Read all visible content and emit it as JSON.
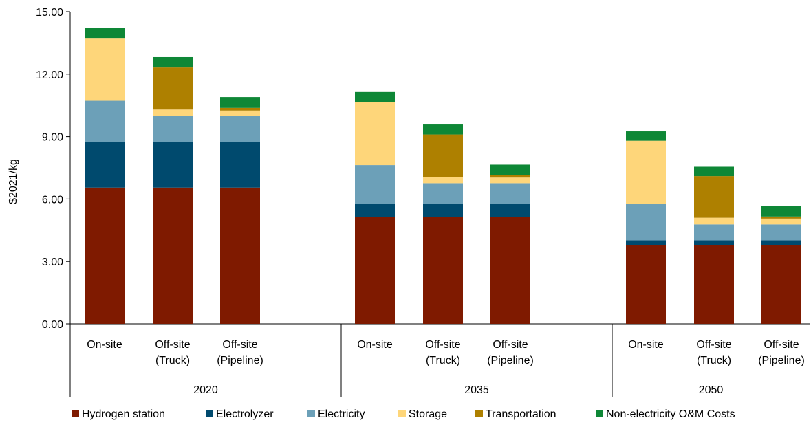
{
  "chart_data": {
    "type": "bar",
    "stacked": true,
    "title": "",
    "ylabel": "$2021/kg",
    "xlabel": "",
    "ylim": [
      0,
      15
    ],
    "yticks": [
      "0.00",
      "3.00",
      "6.00",
      "9.00",
      "12.00",
      "15.00"
    ],
    "grid": false,
    "legend_position": "bottom",
    "groups": [
      {
        "label": "2020",
        "categories": [
          {
            "lines": [
              "On-site"
            ]
          },
          {
            "lines": [
              "Off-site",
              "(Truck)"
            ]
          },
          {
            "lines": [
              "Off-site",
              "(Pipeline)"
            ]
          }
        ]
      },
      {
        "label": "2035",
        "categories": [
          {
            "lines": [
              "On-site"
            ]
          },
          {
            "lines": [
              "Off-site",
              "(Truck)"
            ]
          },
          {
            "lines": [
              "Off-site",
              "(Pipeline)"
            ]
          }
        ]
      },
      {
        "label": "2050",
        "categories": [
          {
            "lines": [
              "On-site"
            ]
          },
          {
            "lines": [
              "Off-site",
              "(Truck)"
            ]
          },
          {
            "lines": [
              "Off-site",
              "(Pipeline)"
            ]
          }
        ]
      }
    ],
    "series": [
      {
        "name": "Hydrogen station",
        "color": "#7f1a00",
        "values": [
          6.55,
          6.55,
          6.55,
          5.15,
          5.15,
          5.15,
          3.78,
          3.78,
          3.78
        ]
      },
      {
        "name": "Electrolyzer",
        "color": "#004a6e",
        "values": [
          2.2,
          2.2,
          2.2,
          0.63,
          0.63,
          0.63,
          0.24,
          0.24,
          0.24
        ]
      },
      {
        "name": "Electricity",
        "color": "#6ca0b8",
        "values": [
          1.97,
          1.25,
          1.25,
          1.85,
          0.98,
          0.98,
          1.75,
          0.76,
          0.76
        ]
      },
      {
        "name": "Storage",
        "color": "#fed67a",
        "values": [
          3.02,
          0.3,
          0.25,
          3.03,
          0.3,
          0.27,
          3.03,
          0.32,
          0.28
        ]
      },
      {
        "name": "Transportation",
        "color": "#ae8000",
        "values": [
          0.0,
          2.02,
          0.13,
          0.0,
          2.04,
          0.12,
          0.0,
          2.0,
          0.1
        ]
      },
      {
        "name": "Non-electricity O&M Costs",
        "color": "#0e8736",
        "values": [
          0.5,
          0.5,
          0.52,
          0.48,
          0.48,
          0.5,
          0.45,
          0.45,
          0.5
        ]
      }
    ]
  }
}
